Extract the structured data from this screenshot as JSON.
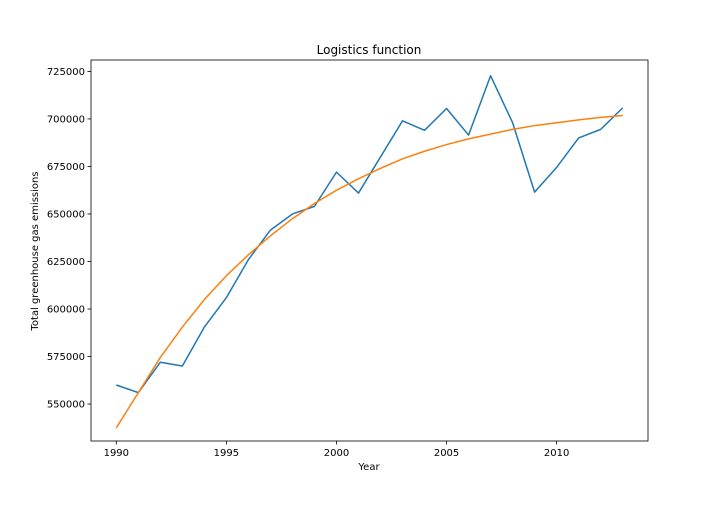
{
  "chart_data": {
    "type": "line",
    "title": "Logistics function",
    "xlabel": "Year",
    "ylabel": "Total greenhouse gas emissions",
    "xlim": [
      1988.85,
      2014.15
    ],
    "ylim": [
      530550,
      731000
    ],
    "xticks": [
      1990,
      1995,
      2000,
      2005,
      2010
    ],
    "yticks": [
      550000,
      575000,
      600000,
      625000,
      650000,
      675000,
      700000,
      725000
    ],
    "grid": false,
    "legend": "none",
    "series": [
      {
        "color": "#1f77b4",
        "x": [
          1990,
          1991,
          1992,
          1993,
          1994,
          1995,
          1996,
          1997,
          1998,
          1999,
          2000,
          2001,
          2002,
          2003,
          2004,
          2005,
          2006,
          2007,
          2008,
          2009,
          2010,
          2011,
          2012,
          2013
        ],
        "y": [
          560000,
          556000,
          572000,
          570000,
          590500,
          606000,
          626000,
          641500,
          650000,
          654000,
          672000,
          661000,
          680000,
          699000,
          694000,
          705500,
          691500,
          722700,
          698000,
          661500,
          674500,
          690000,
          694500,
          705800
        ]
      },
      {
        "color": "#ff7f0e",
        "x": [
          1990,
          1991,
          1992,
          1993,
          1994,
          1995,
          1996,
          1997,
          1998,
          1999,
          2000,
          2001,
          2002,
          2003,
          2004,
          2005,
          2006,
          2007,
          2008,
          2009,
          2010,
          2011,
          2012,
          2013
        ],
        "y": [
          537500,
          556000,
          574500,
          590500,
          605000,
          617500,
          628500,
          638500,
          647500,
          655500,
          662500,
          668500,
          674000,
          679000,
          683000,
          686500,
          689500,
          692000,
          694500,
          696500,
          698000,
          699500,
          700800,
          701800
        ]
      }
    ]
  }
}
